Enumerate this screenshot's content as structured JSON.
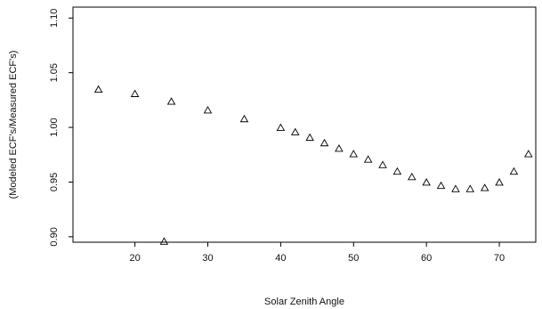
{
  "chart_data": {
    "type": "scatter",
    "title": "",
    "xlabel": "Solar Zenith Angle",
    "ylabel": "(Modeled ECF's/Measured ECF's)",
    "xlim": [
      11.5,
      75
    ],
    "ylim": [
      0.895,
      1.11
    ],
    "xticks": [
      "20",
      "30",
      "40",
      "50",
      "60",
      "70"
    ],
    "yticks": [
      "0.90",
      "0.95",
      "1.00",
      "1.05",
      "1.10"
    ],
    "grid": false,
    "marker": "open-triangle",
    "series": [
      {
        "x": [
          15,
          20,
          24,
          25,
          30,
          35,
          40,
          42,
          44,
          46,
          48,
          50,
          52,
          54,
          56,
          58,
          60,
          62,
          64,
          66,
          68,
          70,
          72,
          74
        ],
        "y": [
          1.035,
          1.031,
          0.896,
          1.024,
          1.016,
          1.008,
          1.0,
          0.996,
          0.991,
          0.986,
          0.981,
          0.976,
          0.971,
          0.966,
          0.96,
          0.955,
          0.95,
          0.947,
          0.944,
          0.944,
          0.945,
          0.95,
          0.96,
          0.976
        ]
      }
    ]
  }
}
